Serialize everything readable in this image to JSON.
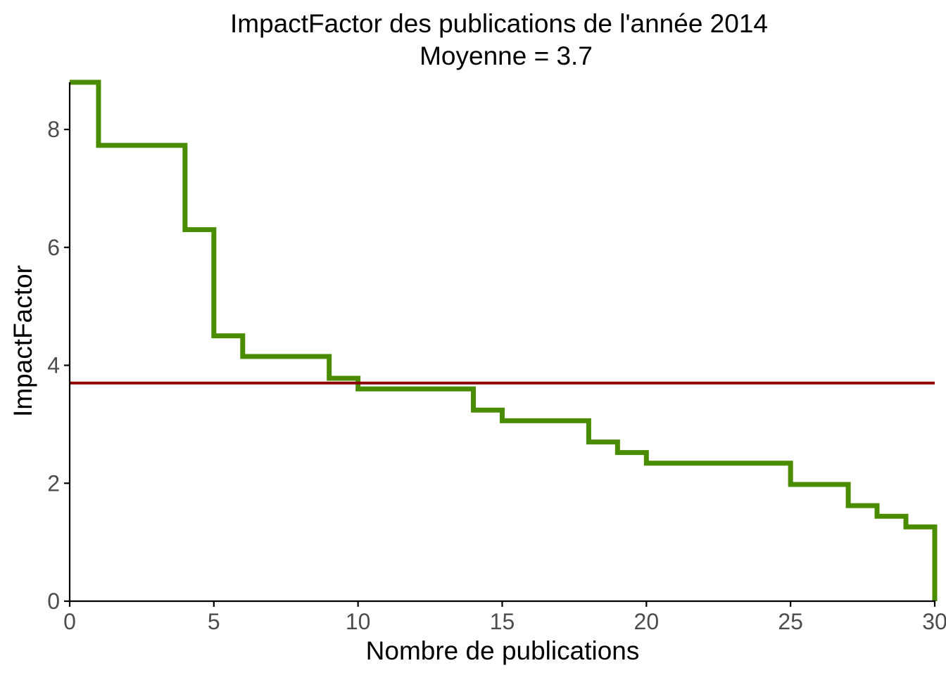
{
  "chart_data": {
    "type": "line",
    "style": "step",
    "title": "ImpactFactor des publications de l'année 2014",
    "subtitle": "Moyenne = 3.7",
    "xlabel": "Nombre de publications",
    "ylabel": "ImpactFactor",
    "xlim": [
      0,
      30
    ],
    "ylim": [
      0,
      8.8
    ],
    "x_ticks": [
      "0",
      "5",
      "10",
      "15",
      "20",
      "25",
      "30"
    ],
    "y_ticks": [
      "0",
      "2",
      "4",
      "6",
      "8"
    ],
    "grid": false,
    "series": [
      {
        "color": "#4a8c00",
        "x": [
          0,
          1,
          2,
          3,
          4,
          5,
          6,
          7,
          8,
          9,
          10,
          11,
          12,
          13,
          14,
          15,
          16,
          17,
          18,
          19,
          20,
          21,
          22,
          23,
          24,
          25,
          26,
          27,
          28,
          29,
          30
        ],
        "y": [
          8.8,
          7.73,
          7.73,
          7.73,
          6.3,
          4.5,
          4.15,
          4.15,
          4.15,
          3.78,
          3.6,
          3.6,
          3.6,
          3.6,
          3.24,
          3.06,
          3.06,
          3.06,
          2.7,
          2.52,
          2.34,
          2.34,
          2.34,
          2.34,
          2.34,
          1.98,
          1.98,
          1.62,
          1.44,
          1.26,
          0
        ]
      }
    ],
    "hline": {
      "y": 3.7,
      "color": "#8b0000"
    }
  }
}
